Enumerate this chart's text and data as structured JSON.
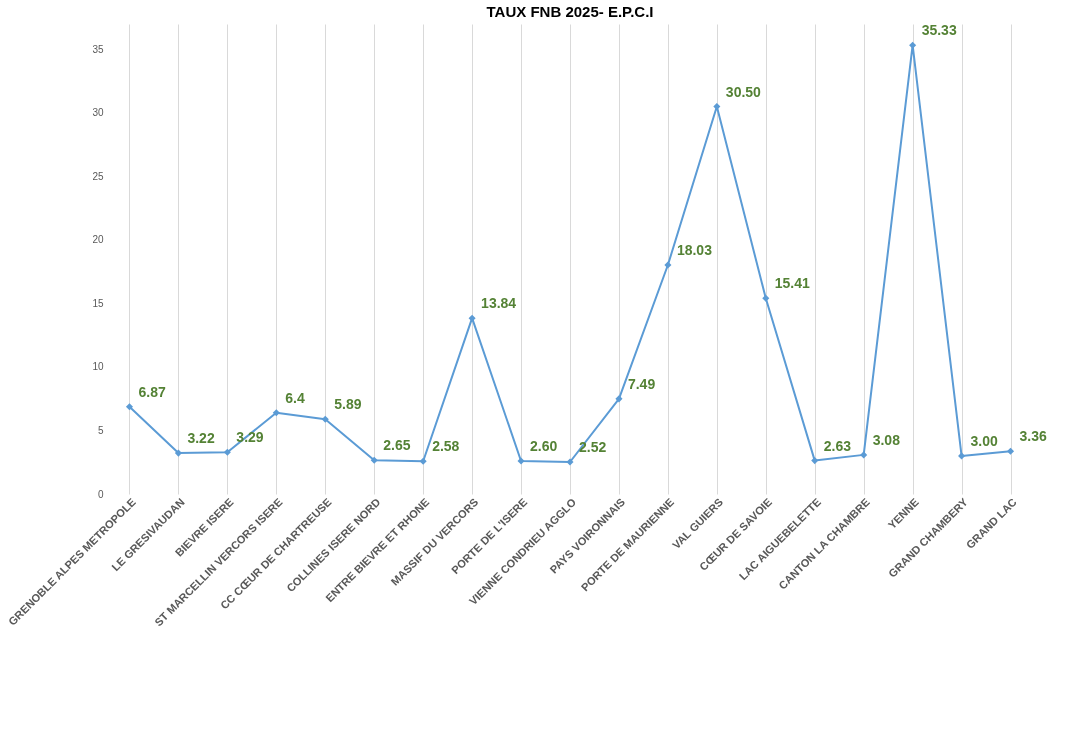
{
  "chart_data": {
    "type": "line",
    "title": "TAUX FNB 2025- E.P.C.I",
    "categories": [
      "GRENOBLE ALPES METROPOLE",
      "LE GRESIVAUDAN",
      "BIEVRE ISERE",
      "ST MARCELLIN VERCORS ISERE",
      "CC CŒUR DE CHARTREUSE",
      "COLLINES ISERE NORD",
      "ENTRE BIEVRE ET RHONE",
      "MASSIF DU VERCORS",
      "PORTE DE L'ISERE",
      "VIENNE CONDRIEU AGGLO",
      "PAYS VOIRONNAIS",
      "PORTE DE MAURIENNE",
      "VAL GUIERS",
      "CŒUR DE SAVOIE",
      "LAC AIGUEBELETTE",
      "CANTON LA CHAMBRE",
      "YENNE",
      "GRAND CHAMBERY",
      "GRAND LAC"
    ],
    "series": [
      {
        "color": "#5b9bd5",
        "values": [
          6.87,
          3.22,
          3.29,
          6.4,
          5.89,
          2.65,
          2.58,
          13.84,
          2.6,
          2.52,
          7.49,
          18.03,
          30.5,
          15.41,
          2.63,
          3.08,
          35.33,
          3.0,
          3.36
        ],
        "value_labels": [
          "6.87",
          "3.22",
          "3.29",
          "6.4",
          "5.89",
          "2.65",
          "2.58",
          "13.84",
          "2.60",
          "2.52",
          "7.49",
          "18.03",
          "30.50",
          "15.41",
          "2.63",
          "3.08",
          "35.33",
          "3.00",
          "3.36"
        ]
      }
    ],
    "ylim": [
      0,
      37
    ],
    "yticks": [
      0,
      5,
      10,
      15,
      20,
      25,
      30,
      35
    ],
    "grid": "x",
    "marker": "diamond",
    "line_style": "solid"
  }
}
